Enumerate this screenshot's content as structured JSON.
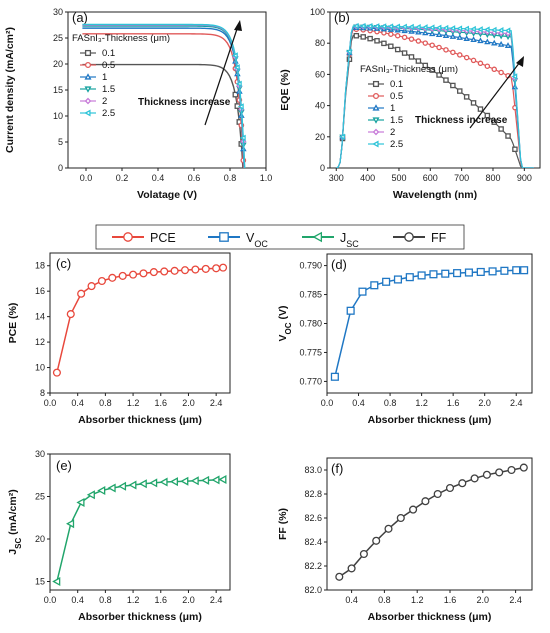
{
  "legend_top": {
    "items": [
      {
        "label": "PCE",
        "sub": "",
        "color": "#e8483c",
        "marker": "circle"
      },
      {
        "label": "V",
        "sub": "OC",
        "color": "#1f77c4",
        "marker": "square"
      },
      {
        "label": "J",
        "sub": "SC",
        "color": "#21a56b",
        "marker": "triangle"
      },
      {
        "label": "FF",
        "sub": "",
        "color": "#404040",
        "marker": "circle"
      }
    ]
  },
  "chart_data": [
    {
      "id": "a",
      "panel_label": "(a)",
      "type": "line",
      "xlabel": "Volatage (V)",
      "ylabel": "Current density (mA/cm²)",
      "xlim": [
        -0.1,
        1.0
      ],
      "ylim": [
        0,
        30
      ],
      "xticks": [
        "0.0",
        "0.2",
        "0.4",
        "0.6",
        "0.8",
        "1.0"
      ],
      "yticks": [
        "0",
        "5",
        "10",
        "15",
        "20",
        "25",
        "30"
      ],
      "legend_title": "FASnI₃-Thickness (μm)",
      "annotation": "Thickness increase",
      "series": [
        {
          "name": "0.1",
          "color": "#555555",
          "marker": "square",
          "jsc": 19.9,
          "voc": 0.872
        },
        {
          "name": "0.5",
          "color": "#e05a5a",
          "marker": "circle",
          "jsc": 25.8,
          "voc": 0.876
        },
        {
          "name": "1",
          "color": "#1f77c4",
          "marker": "triangle",
          "jsc": 26.9,
          "voc": 0.879
        },
        {
          "name": "1.5",
          "color": "#17a2a0",
          "marker": "triangle-down",
          "jsc": 27.3,
          "voc": 0.88
        },
        {
          "name": "2",
          "color": "#c77ad8",
          "marker": "diamond",
          "jsc": 27.5,
          "voc": 0.881
        },
        {
          "name": "2.5",
          "color": "#2ec4d8",
          "marker": "triangle-left",
          "jsc": 27.6,
          "voc": 0.882
        }
      ]
    },
    {
      "id": "b",
      "panel_label": "(b)",
      "type": "line",
      "xlabel": "Wavelength (nm)",
      "ylabel": "EQE (%)",
      "xlim": [
        280,
        950
      ],
      "ylim": [
        0,
        100
      ],
      "xticks": [
        "300",
        "400",
        "500",
        "600",
        "700",
        "800",
        "900"
      ],
      "yticks": [
        "0",
        "20",
        "40",
        "60",
        "80",
        "100"
      ],
      "legend_title": "FASnI₃-Thickness (μm)",
      "annotation": "Thickness increase",
      "series": [
        {
          "name": "0.1",
          "color": "#555555",
          "marker": "square",
          "peak": 85,
          "tail": 18
        },
        {
          "name": "0.5",
          "color": "#e05a5a",
          "marker": "circle",
          "peak": 89,
          "tail": 58
        },
        {
          "name": "1",
          "color": "#1f77c4",
          "marker": "triangle",
          "peak": 90,
          "tail": 78
        },
        {
          "name": "1.5",
          "color": "#17a2a0",
          "marker": "triangle-down",
          "peak": 90.5,
          "tail": 84
        },
        {
          "name": "2",
          "color": "#c77ad8",
          "marker": "diamond",
          "peak": 90.7,
          "tail": 86
        },
        {
          "name": "2.5",
          "color": "#2ec4d8",
          "marker": "triangle-left",
          "peak": 91,
          "tail": 88
        }
      ]
    },
    {
      "id": "c",
      "panel_label": "(c)",
      "type": "line",
      "xlabel": "Absorber thickness (μm)",
      "ylabel": "PCE (%)",
      "xlim": [
        0,
        2.6
      ],
      "ylim": [
        8,
        19
      ],
      "xticks": [
        "0.0",
        "0.4",
        "0.8",
        "1.2",
        "1.6",
        "2.0",
        "2.4"
      ],
      "yticks": [
        "8",
        "10",
        "12",
        "14",
        "16",
        "18"
      ],
      "series": [
        {
          "name": "PCE",
          "color": "#e8483c",
          "marker": "circle",
          "x": [
            0.1,
            0.3,
            0.45,
            0.6,
            0.75,
            0.9,
            1.05,
            1.2,
            1.35,
            1.5,
            1.65,
            1.8,
            1.95,
            2.1,
            2.25,
            2.4,
            2.5
          ],
          "y": [
            9.6,
            14.2,
            15.8,
            16.4,
            16.8,
            17.05,
            17.2,
            17.3,
            17.4,
            17.5,
            17.55,
            17.6,
            17.65,
            17.7,
            17.75,
            17.8,
            17.85
          ]
        }
      ]
    },
    {
      "id": "d",
      "panel_label": "(d)",
      "type": "line",
      "xlabel": "Absorber thickness (μm)",
      "ylabel": "V_OC (V)",
      "xlim": [
        0,
        2.6
      ],
      "ylim": [
        0.768,
        0.792
      ],
      "xticks": [
        "0.0",
        "0.4",
        "0.8",
        "1.2",
        "1.6",
        "2.0",
        "2.4"
      ],
      "yticks": [
        "0.770",
        "0.775",
        "0.780",
        "0.785",
        "0.790"
      ],
      "series": [
        {
          "name": "V_OC",
          "color": "#1f77c4",
          "marker": "square",
          "x": [
            0.1,
            0.3,
            0.45,
            0.6,
            0.75,
            0.9,
            1.05,
            1.2,
            1.35,
            1.5,
            1.65,
            1.8,
            1.95,
            2.1,
            2.25,
            2.4,
            2.5
          ],
          "y": [
            0.7708,
            0.7822,
            0.7855,
            0.7866,
            0.7872,
            0.7876,
            0.788,
            0.7883,
            0.7885,
            0.7886,
            0.7887,
            0.7888,
            0.7889,
            0.789,
            0.7891,
            0.7892,
            0.7892
          ]
        }
      ]
    },
    {
      "id": "e",
      "panel_label": "(e)",
      "type": "line",
      "xlabel": "Absorber thickness (μm)",
      "ylabel": "J_SC (mA/cm²)",
      "xlim": [
        0,
        2.6
      ],
      "ylim": [
        14,
        30
      ],
      "xticks": [
        "0.0",
        "0.4",
        "0.8",
        "1.2",
        "1.6",
        "2.0",
        "2.4"
      ],
      "yticks": [
        "15",
        "20",
        "25",
        "30"
      ],
      "series": [
        {
          "name": "J_SC",
          "color": "#21a56b",
          "marker": "triangle-left",
          "x": [
            0.1,
            0.3,
            0.45,
            0.6,
            0.75,
            0.9,
            1.05,
            1.2,
            1.35,
            1.5,
            1.65,
            1.8,
            1.95,
            2.1,
            2.25,
            2.4,
            2.5
          ],
          "y": [
            15.0,
            21.8,
            24.3,
            25.2,
            25.7,
            26.0,
            26.2,
            26.35,
            26.5,
            26.6,
            26.7,
            26.75,
            26.8,
            26.85,
            26.9,
            26.95,
            27.0
          ]
        }
      ]
    },
    {
      "id": "f",
      "panel_label": "(f)",
      "type": "line",
      "xlabel": "Absorber thickness (μm)",
      "ylabel": "FF (%)",
      "xlim": [
        0.1,
        2.6
      ],
      "ylim": [
        82.0,
        83.1
      ],
      "xticks": [
        "0.4",
        "0.8",
        "1.2",
        "1.6",
        "2.0",
        "2.4"
      ],
      "yticks": [
        "82.0",
        "82.2",
        "82.4",
        "82.6",
        "82.8",
        "83.0"
      ],
      "series": [
        {
          "name": "FF",
          "color": "#404040",
          "marker": "circle",
          "x": [
            0.25,
            0.4,
            0.55,
            0.7,
            0.85,
            1.0,
            1.15,
            1.3,
            1.45,
            1.6,
            1.75,
            1.9,
            2.05,
            2.2,
            2.35,
            2.5
          ],
          "y": [
            82.11,
            82.18,
            82.3,
            82.41,
            82.51,
            82.6,
            82.67,
            82.74,
            82.8,
            82.85,
            82.89,
            82.93,
            82.96,
            82.98,
            83.0,
            83.02
          ]
        }
      ]
    }
  ]
}
